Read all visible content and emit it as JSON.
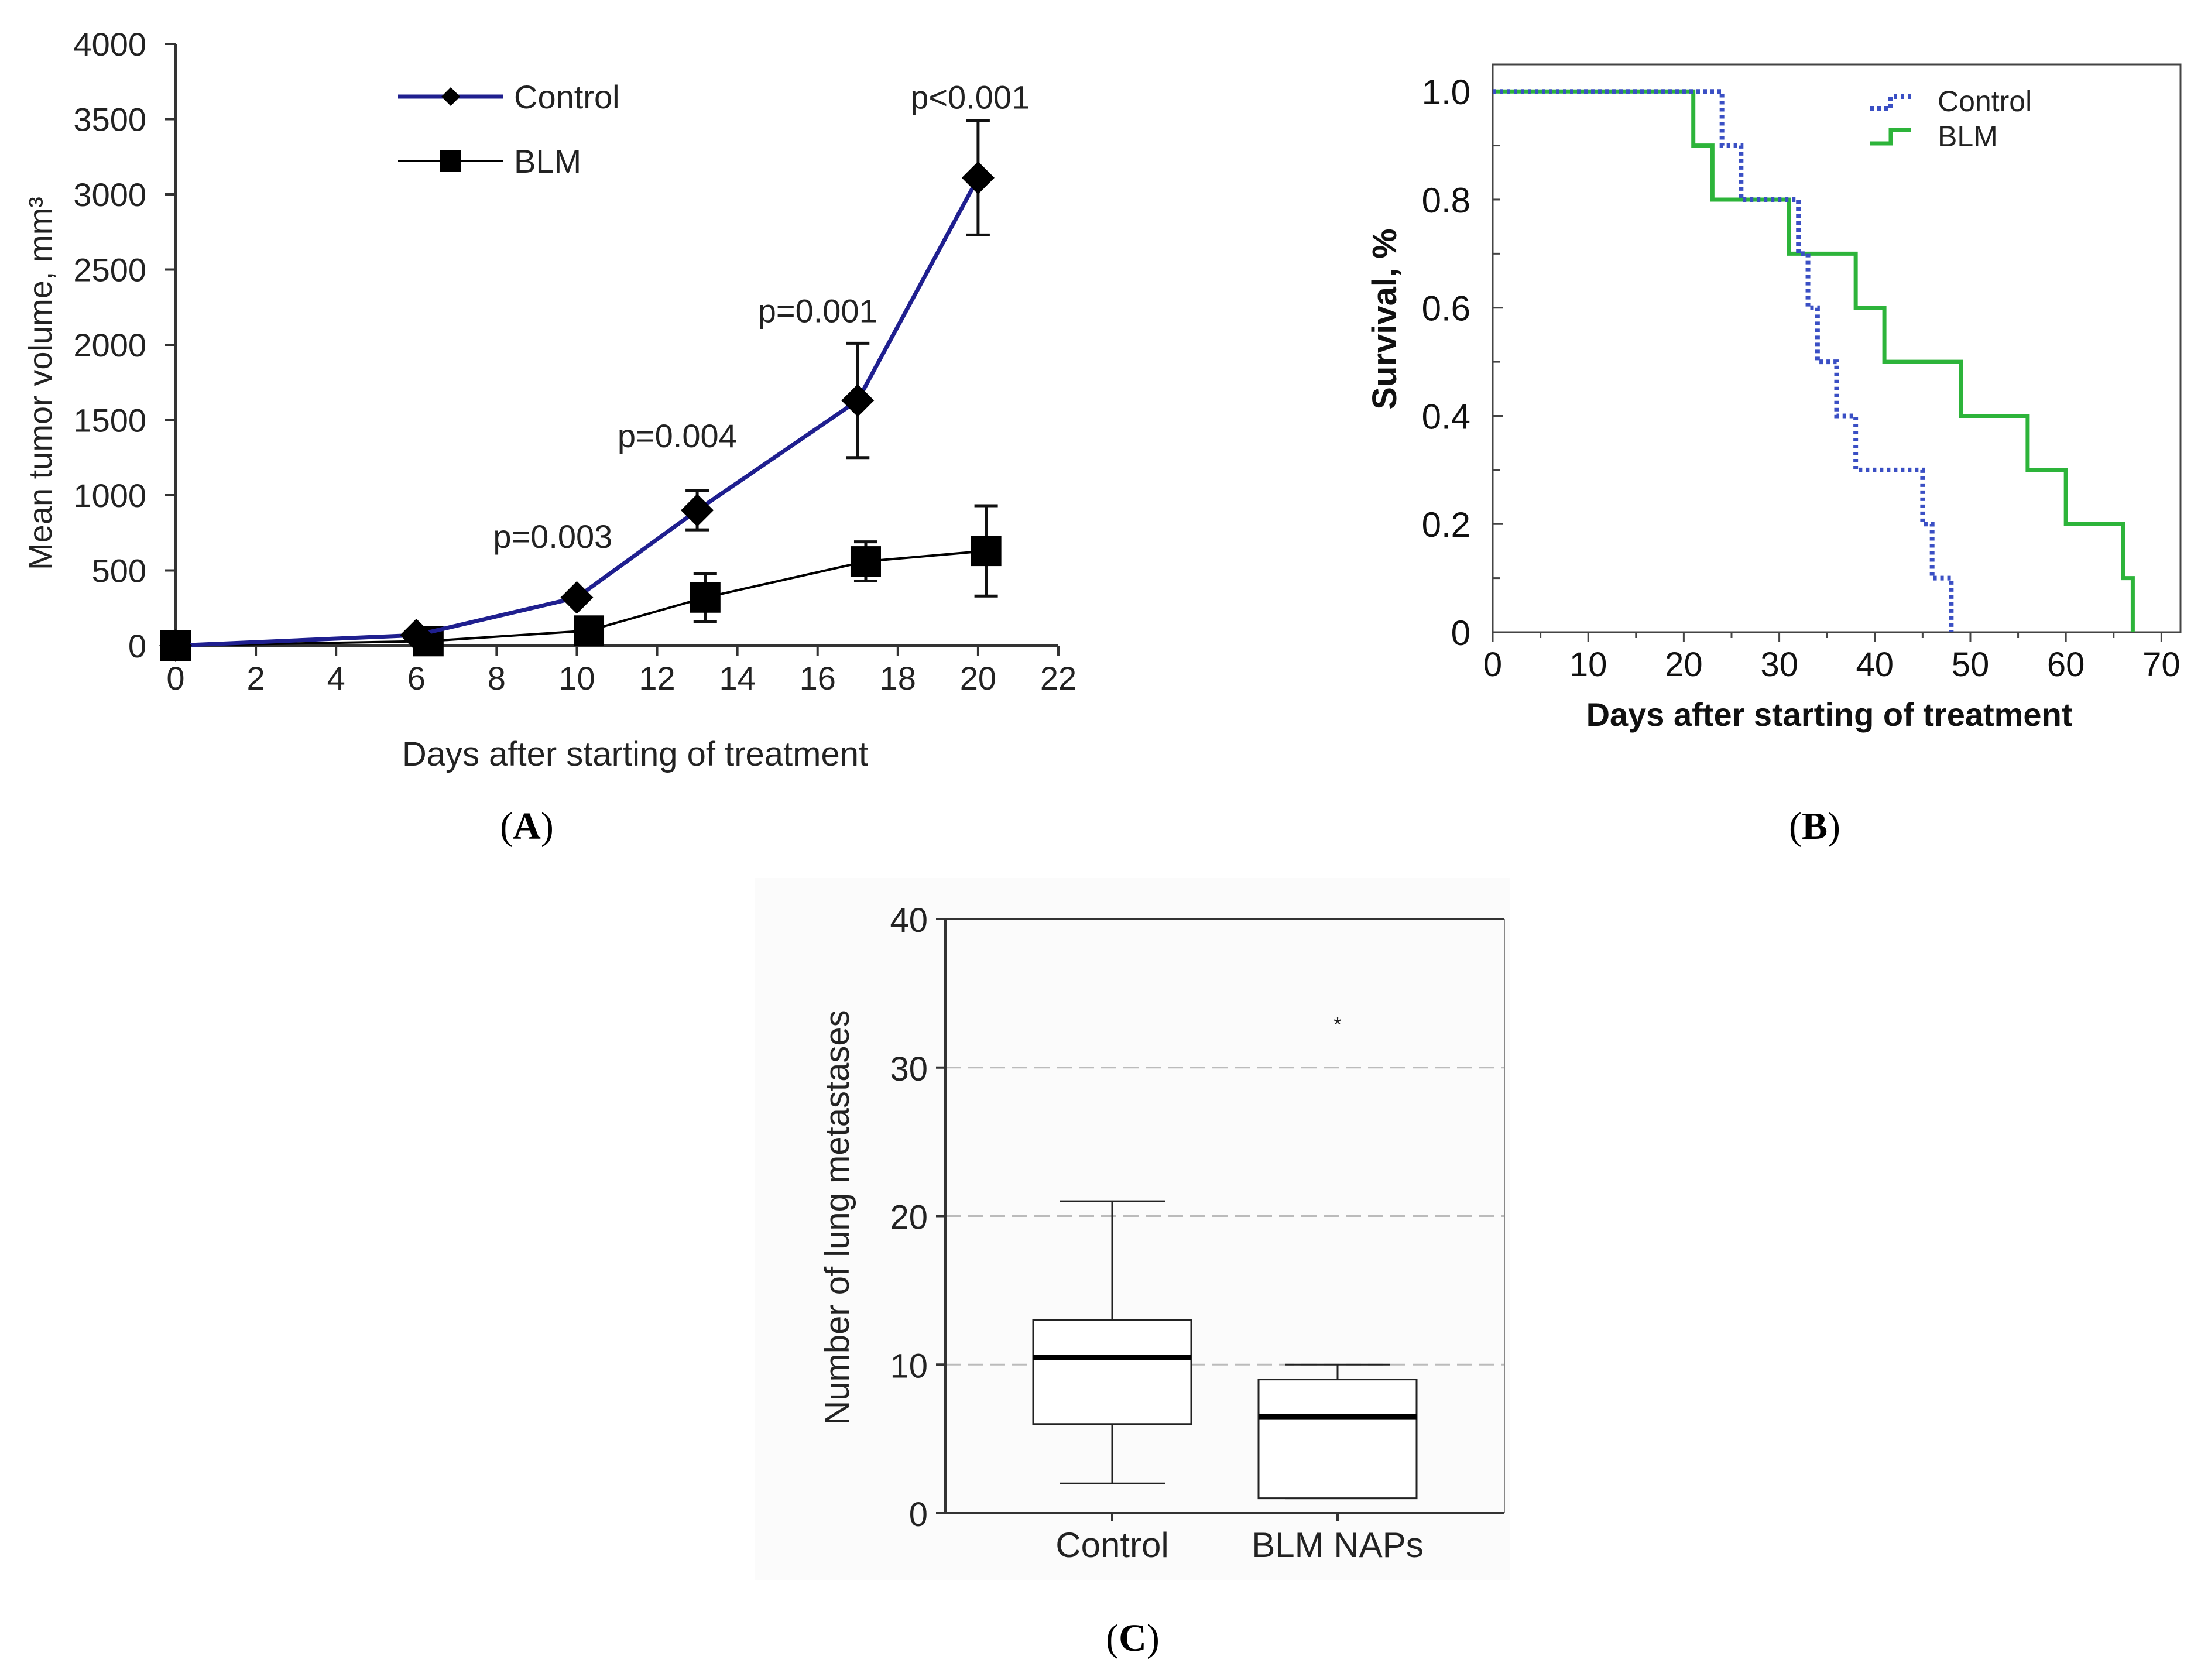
{
  "panels": {
    "a": {
      "label_open": "(",
      "letter": "A",
      "label_close": ")"
    },
    "b": {
      "label_open": "(",
      "letter": "B",
      "label_close": ")"
    },
    "c": {
      "label_open": "(",
      "letter": "C",
      "label_close": ")"
    }
  },
  "chart_data": [
    {
      "id": "A",
      "type": "line",
      "xlabel": "Days after starting of treatment",
      "ylabel": "Mean tumor volume, mm³",
      "xlim": [
        0,
        22
      ],
      "ylim": [
        0,
        4000
      ],
      "xticks": [
        0,
        2,
        4,
        6,
        8,
        10,
        12,
        14,
        16,
        18,
        20,
        22
      ],
      "yticks": [
        0,
        500,
        1000,
        1500,
        2000,
        2500,
        3000,
        3500,
        4000
      ],
      "grid": false,
      "legend_position": "top-center",
      "series": [
        {
          "name": "Control",
          "color": "#1f1f8f",
          "marker": "diamond",
          "x": [
            0,
            6,
            10,
            13,
            17,
            20
          ],
          "y": [
            0,
            70,
            320,
            900,
            1630,
            3110
          ],
          "err": [
            0,
            0,
            0,
            130,
            380,
            380
          ]
        },
        {
          "name": "BLM",
          "color": "#000000",
          "marker": "square",
          "x": [
            0,
            6.3,
            10.3,
            13.2,
            17.2,
            20.2
          ],
          "y": [
            0,
            30,
            100,
            320,
            560,
            630
          ],
          "err": [
            0,
            0,
            0,
            160,
            130,
            300
          ]
        }
      ],
      "annotations": [
        {
          "text": "p=0.003",
          "x": 9.4,
          "y": 650
        },
        {
          "text": "p=0.004",
          "x": 12.5,
          "y": 1320
        },
        {
          "text": "p=0.001",
          "x": 16.0,
          "y": 2150
        },
        {
          "text": "p<0.001",
          "x": 19.8,
          "y": 3570
        }
      ]
    },
    {
      "id": "B",
      "type": "line",
      "subtype": "kaplan-meier step",
      "xlabel": "Days after starting of treatment",
      "ylabel": "Survival, %",
      "xlim": [
        0,
        72
      ],
      "ylim": [
        0,
        1.05
      ],
      "xticks": [
        0,
        10,
        20,
        30,
        40,
        50,
        60,
        70
      ],
      "yticks": [
        0,
        0.2,
        0.4,
        0.6,
        0.8,
        1.0
      ],
      "ytick_labels": [
        "0",
        "0.2",
        "0.4",
        "0.6",
        "0.8",
        "1.0"
      ],
      "grid": false,
      "legend_position": "top-right",
      "series": [
        {
          "name": "Control",
          "color": "#3a4fc4",
          "style": "dotted",
          "x": [
            0,
            24,
            26,
            32,
            33,
            34,
            36,
            38,
            45,
            46,
            48
          ],
          "y": [
            1.0,
            0.9,
            0.8,
            0.7,
            0.6,
            0.5,
            0.4,
            0.3,
            0.2,
            0.1,
            0.0
          ]
        },
        {
          "name": "BLM",
          "color": "#2db43a",
          "style": "solid",
          "x": [
            0,
            21,
            23,
            31,
            38,
            41,
            49,
            56,
            60,
            66,
            67
          ],
          "y": [
            1.0,
            0.9,
            0.8,
            0.7,
            0.6,
            0.5,
            0.4,
            0.3,
            0.2,
            0.1,
            0.0
          ]
        }
      ]
    },
    {
      "id": "C",
      "type": "box",
      "xlabel": "",
      "ylabel": "Number of lung metastases",
      "ylim": [
        0,
        40
      ],
      "yticks": [
        0,
        10,
        20,
        30,
        40
      ],
      "grid": true,
      "categories": [
        "Control",
        "BLM NAPs"
      ],
      "boxes": [
        {
          "category": "Control",
          "whisker_low": 2,
          "q1": 6,
          "median": 10.5,
          "q3": 13,
          "whisker_high": 21,
          "outliers": []
        },
        {
          "category": "BLM NAPs",
          "whisker_low": 1,
          "q1": 1,
          "median": 6.5,
          "q3": 9,
          "whisker_high": 10,
          "outliers": [
            33
          ]
        }
      ]
    }
  ]
}
